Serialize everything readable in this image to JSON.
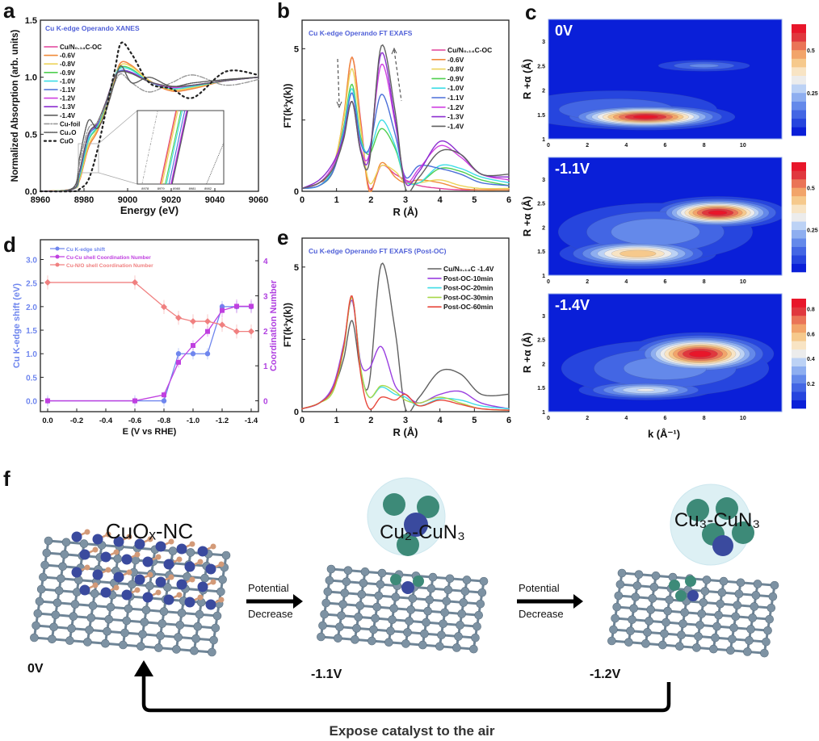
{
  "panel_letters": {
    "a": "a",
    "b": "b",
    "c": "c",
    "d": "d",
    "e": "e",
    "f": "f"
  },
  "chart_data": [
    {
      "id": "a",
      "type": "line",
      "title": "Cu K-edge  Operando XANES",
      "xlabel": "Energy (eV)",
      "ylabel": "Normalized Absorption (arb. units)",
      "xlim": [
        8960,
        9060
      ],
      "ylim": [
        0,
        1.5
      ],
      "xticks": [
        "8960",
        "8980",
        "9000",
        "9020",
        "9040",
        "9060"
      ],
      "yticks": [
        "0.0",
        "0.5",
        "1.0",
        "1.5"
      ],
      "legend_position": "left",
      "x": [
        8960,
        8975,
        8978,
        8982,
        8986,
        8990,
        8994,
        8997,
        9002,
        9010,
        9020,
        9030,
        9045,
        9060
      ],
      "series": [
        {
          "name": "Cu/N₀.₁₄C-OC",
          "color": "#e0409a",
          "style": "solid",
          "values": [
            0,
            0.02,
            0.1,
            0.38,
            0.52,
            0.72,
            0.98,
            1.13,
            1.1,
            0.97,
            0.88,
            0.9,
            0.97,
            1.0
          ]
        },
        {
          "name": "-0.6V",
          "color": "#f08a3a",
          "style": "solid",
          "values": [
            0,
            0.02,
            0.1,
            0.38,
            0.52,
            0.72,
            0.98,
            1.13,
            1.1,
            0.97,
            0.88,
            0.9,
            0.97,
            1.0
          ]
        },
        {
          "name": "-0.8V",
          "color": "#ecd35a",
          "style": "solid",
          "values": [
            0,
            0.02,
            0.11,
            0.4,
            0.54,
            0.73,
            0.99,
            1.11,
            1.09,
            0.97,
            0.89,
            0.91,
            0.97,
            1.0
          ]
        },
        {
          "name": "-0.9V",
          "color": "#4fcf4f",
          "style": "solid",
          "values": [
            0,
            0.02,
            0.13,
            0.44,
            0.56,
            0.75,
            1.0,
            1.09,
            1.07,
            0.96,
            0.9,
            0.92,
            0.97,
            1.0
          ]
        },
        {
          "name": "-1.0V",
          "color": "#3fdde6",
          "style": "solid",
          "values": [
            0,
            0.02,
            0.14,
            0.45,
            0.57,
            0.76,
            1.0,
            1.08,
            1.06,
            0.96,
            0.9,
            0.92,
            0.97,
            1.0
          ]
        },
        {
          "name": "-1.1V",
          "color": "#4a6fd8",
          "style": "solid",
          "values": [
            0,
            0.02,
            0.16,
            0.48,
            0.58,
            0.77,
            1.0,
            1.06,
            1.04,
            0.96,
            0.91,
            0.93,
            0.97,
            1.0
          ]
        },
        {
          "name": "-1.2V",
          "color": "#d040e0",
          "style": "solid",
          "values": [
            0,
            0.02,
            0.18,
            0.5,
            0.59,
            0.78,
            1.0,
            1.05,
            1.04,
            0.96,
            0.91,
            0.93,
            0.97,
            1.0
          ]
        },
        {
          "name": "-1.3V",
          "color": "#8c2fd0",
          "style": "solid",
          "values": [
            0,
            0.02,
            0.18,
            0.5,
            0.59,
            0.78,
            1.0,
            1.05,
            1.04,
            0.96,
            0.92,
            0.93,
            0.97,
            1.0
          ]
        },
        {
          "name": "-1.4V",
          "color": "#606060",
          "style": "solid",
          "values": [
            0,
            0.02,
            0.18,
            0.5,
            0.6,
            0.78,
            1.0,
            1.05,
            1.03,
            0.96,
            0.92,
            0.93,
            0.97,
            1.0
          ]
        },
        {
          "name": "Cu-foil",
          "color": "#999999",
          "style": "dashdot",
          "values": [
            0,
            0.03,
            0.25,
            0.55,
            0.6,
            0.75,
            0.95,
            1.03,
            0.95,
            0.87,
            0.95,
            1.02,
            0.93,
            0.98
          ]
        },
        {
          "name": "Cu₂O",
          "color": "#555555",
          "style": "dotted",
          "values": [
            0,
            0.03,
            0.3,
            0.62,
            0.55,
            0.7,
            0.95,
            1.1,
            0.95,
            1.0,
            0.92,
            0.95,
            0.98,
            1.0
          ]
        },
        {
          "name": "CuO",
          "color": "#222222",
          "style": "dots",
          "values": [
            0,
            0.0,
            0.02,
            0.1,
            0.35,
            0.7,
            1.05,
            1.3,
            1.2,
            0.95,
            0.9,
            0.82,
            1.05,
            1.02
          ]
        }
      ],
      "inset": {
        "xticks": [
          "8978",
          "8979",
          "8980",
          "8981",
          "8982"
        ]
      }
    },
    {
      "id": "b",
      "type": "line",
      "title": "Cu K-edge  Operando FT EXAFS",
      "xlabel": "R (Å)",
      "ylabel": "FT(k³χ(k))",
      "xlim": [
        0,
        6
      ],
      "ylim": [
        0,
        6
      ],
      "xticks": [
        "0",
        "1",
        "2",
        "3",
        "4",
        "5",
        "6"
      ],
      "yticks": [
        "0",
        "5"
      ],
      "legend_position": "top-right",
      "x": [
        0,
        0.5,
        0.9,
        1.2,
        1.45,
        1.7,
        1.95,
        2.3,
        2.7,
        3.0,
        3.4,
        4.0,
        4.6,
        5.2,
        6.0
      ],
      "series": [
        {
          "name": "Cu/N₀.₁₄C-OC",
          "color": "#e0409a",
          "values": [
            0.1,
            0.3,
            0.7,
            2.5,
            4.7,
            2.5,
            0.1,
            0.9,
            0.6,
            0.4,
            0.2,
            0.1,
            0.05,
            0.05,
            0.05
          ]
        },
        {
          "name": "-0.6V",
          "color": "#f08a3a",
          "values": [
            0.1,
            0.3,
            0.8,
            2.6,
            4.7,
            2.4,
            0.0,
            1.0,
            0.5,
            0.3,
            0.4,
            0.3,
            0.1,
            0.05,
            0.05
          ]
        },
        {
          "name": "-0.8V",
          "color": "#ecd35a",
          "values": [
            0.1,
            0.3,
            0.9,
            2.5,
            4.3,
            2.2,
            0.3,
            0.9,
            0.7,
            0.3,
            0.3,
            0.4,
            0.2,
            0.1,
            0.1
          ]
        },
        {
          "name": "-0.9V",
          "color": "#4fcf4f",
          "values": [
            0.1,
            0.2,
            0.7,
            2.2,
            3.75,
            1.9,
            1.3,
            2.2,
            1.5,
            0.4,
            0.3,
            0.8,
            0.7,
            0.4,
            0.2
          ]
        },
        {
          "name": "-1.0V",
          "color": "#3fdde6",
          "values": [
            0.1,
            0.2,
            0.8,
            2.1,
            3.6,
            1.8,
            1.4,
            2.5,
            1.6,
            0.4,
            0.3,
            0.9,
            0.8,
            0.5,
            0.3
          ]
        },
        {
          "name": "-1.1V",
          "color": "#4a6fd8",
          "values": [
            0.1,
            0.2,
            0.7,
            2.0,
            3.45,
            1.7,
            1.5,
            3.4,
            2.0,
            0.5,
            0.9,
            0.8,
            0.6,
            0.3,
            0.2
          ]
        },
        {
          "name": "-1.2V",
          "color": "#d040e0",
          "values": [
            0.1,
            0.3,
            0.9,
            1.9,
            3.15,
            1.5,
            1.3,
            4.45,
            2.4,
            0.4,
            0.8,
            1.6,
            1.2,
            0.6,
            0.4
          ]
        },
        {
          "name": "-1.3V",
          "color": "#8c2fd0",
          "values": [
            0.1,
            0.4,
            1.0,
            1.9,
            3.15,
            1.4,
            1.2,
            4.85,
            2.5,
            0.3,
            0.7,
            1.75,
            1.3,
            0.6,
            0.5
          ]
        },
        {
          "name": "-1.4V",
          "color": "#606060",
          "values": [
            0.1,
            0.3,
            0.8,
            1.8,
            3.15,
            1.4,
            1.0,
            5.1,
            2.8,
            0.1,
            0.5,
            1.4,
            1.3,
            0.6,
            0.6
          ]
        }
      ]
    },
    {
      "id": "c",
      "type": "heatmap",
      "xlabel": "k (Å⁻¹)",
      "ylabel": "R +α (Å)",
      "xlim": [
        0,
        12
      ],
      "ylim": [
        1,
        3.45
      ],
      "xticks": [
        "0",
        "2",
        "4",
        "6",
        "8",
        "10"
      ],
      "yticks": [
        "1",
        "1.5",
        "2",
        "2.5",
        "3"
      ],
      "maps": [
        {
          "label": "0V",
          "cmax": 0.65,
          "cbar_ticks": [
            "0.25",
            "0.5"
          ],
          "cbar_values": [
            0.25,
            0.5
          ],
          "features": [
            {
              "k": 5.0,
              "R": 1.45,
              "k_width": 3.4,
              "R_width": 0.2,
              "intensity": 0.63
            },
            {
              "k": 8.0,
              "R": 2.5,
              "k_width": 2.5,
              "R_width": 0.12,
              "intensity": 0.17
            },
            {
              "k": 3.5,
              "R": 1.6,
              "k_width": 6,
              "R_width": 0.45,
              "intensity": 0.14
            }
          ]
        },
        {
          "label": "-1.1V",
          "cmax": 0.65,
          "cbar_ticks": [
            "0.25",
            "0.5"
          ],
          "cbar_values": [
            0.25,
            0.5
          ],
          "features": [
            {
              "k": 8.7,
              "R": 2.3,
              "k_width": 2.6,
              "R_width": 0.25,
              "intensity": 0.63
            },
            {
              "k": 4.6,
              "R": 1.45,
              "k_width": 3.2,
              "R_width": 0.25,
              "intensity": 0.45
            },
            {
              "k": 5.5,
              "R": 1.9,
              "k_width": 5,
              "R_width": 0.6,
              "intensity": 0.2
            }
          ]
        },
        {
          "label": "-1.4V",
          "cmax": 0.88,
          "cbar_ticks": [
            "0.2",
            "0.4",
            "0.6",
            "0.8"
          ],
          "cbar_values": [
            0.2,
            0.4,
            0.6,
            0.8
          ],
          "features": [
            {
              "k": 7.8,
              "R": 2.2,
              "k_width": 2.8,
              "R_width": 0.33,
              "intensity": 0.86
            },
            {
              "k": 5.0,
              "R": 1.45,
              "k_width": 3.0,
              "R_width": 0.18,
              "intensity": 0.42
            },
            {
              "k": 6,
              "R": 1.9,
              "k_width": 5.5,
              "R_width": 0.6,
              "intensity": 0.25
            }
          ]
        }
      ]
    },
    {
      "id": "d",
      "type": "line",
      "xlabel": "E (V vs RHE)",
      "ylabel": "Cu K-edge shift (eV)",
      "ylabel_right": "Coordination Number",
      "xlim": [
        0.05,
        -1.45
      ],
      "ylim": [
        -0.23,
        3.42
      ],
      "ylim_right": [
        -0.31,
        4.6
      ],
      "xticks": [
        "0.0",
        "-0.2",
        "-0.4",
        "-0.6",
        "-0.8",
        "-1.0",
        "-1.2",
        "-1.4"
      ],
      "yticks": [
        "0.0",
        "0.5",
        "1.0",
        "1.5",
        "2.0",
        "2.5",
        "3.0"
      ],
      "yticks_right": [
        "0",
        "1",
        "2",
        "3",
        "4"
      ],
      "legend_position": "top-left",
      "x": [
        0,
        -0.6,
        -0.8,
        -0.9,
        -1.0,
        -1.1,
        -1.2,
        -1.3,
        -1.4
      ],
      "series": [
        {
          "name": "Cu K-edge shift",
          "axis": "left",
          "color": "#6f86ee",
          "marker": "circle",
          "values": [
            0,
            0,
            0,
            1.0,
            1.0,
            1.0,
            2.0,
            2.0,
            2.0
          ],
          "error": [
            0.12,
            0.12,
            0.12,
            0.12,
            0.12,
            0.12,
            0.12,
            0.12,
            0.12
          ]
        },
        {
          "name": "Cu-Cu  shell Coordination Number",
          "axis": "right",
          "color": "#c040e0",
          "marker": "square",
          "values": [
            0,
            0,
            0.17,
            1.1,
            1.58,
            1.98,
            2.58,
            2.7,
            2.7
          ],
          "error": [
            0.1,
            0.1,
            0.1,
            0.15,
            0.15,
            0.15,
            0.2,
            0.2,
            0.2
          ]
        },
        {
          "name": "Cu-N/O shell Coordination Number",
          "axis": "right",
          "color": "#f08080",
          "marker": "diamond",
          "values": [
            3.38,
            3.38,
            2.68,
            2.37,
            2.27,
            2.27,
            2.17,
            1.98,
            1.98
          ],
          "error": [
            0.2,
            0.2,
            0.2,
            0.2,
            0.2,
            0.2,
            0.2,
            0.2,
            0.2
          ]
        }
      ]
    },
    {
      "id": "e",
      "type": "line",
      "title": "Cu K-edge  Operando FT EXAFS (Post-OC)",
      "xlabel": "R (Å)",
      "ylabel": "FT(k³χ(k))",
      "xlim": [
        0,
        6
      ],
      "ylim": [
        0,
        6
      ],
      "xticks": [
        "0",
        "1",
        "2",
        "3",
        "4",
        "5",
        "6"
      ],
      "yticks": [
        "0",
        "5"
      ],
      "legend_position": "top-right",
      "x": [
        0,
        0.5,
        0.9,
        1.2,
        1.45,
        1.7,
        1.95,
        2.3,
        2.7,
        3.0,
        3.4,
        4.0,
        4.6,
        5.2,
        6.0
      ],
      "series": [
        {
          "name": "Cu/N₀.₁₄C -1.4V",
          "color": "#606060",
          "values": [
            0.1,
            0.3,
            0.8,
            1.8,
            3.15,
            1.4,
            1.0,
            5.1,
            2.8,
            0.1,
            0.5,
            1.4,
            1.3,
            0.6,
            0.6
          ]
        },
        {
          "name": "Post-OC-10min",
          "color": "#9a3fe0",
          "values": [
            0.1,
            0.3,
            0.9,
            2.3,
            3.85,
            1.7,
            1.5,
            2.25,
            0.9,
            0.6,
            0.3,
            0.6,
            0.7,
            0.3,
            0.1
          ]
        },
        {
          "name": "Post-OC-20min",
          "color": "#3fdde6",
          "values": [
            0.1,
            0.3,
            0.8,
            2.2,
            3.95,
            1.5,
            0.5,
            0.85,
            0.6,
            0.5,
            0.2,
            0.45,
            0.4,
            0.2,
            0.1
          ]
        },
        {
          "name": "Post-OC-30min",
          "color": "#a8d84a",
          "values": [
            0.1,
            0.3,
            0.7,
            2.1,
            3.95,
            1.5,
            0.5,
            0.9,
            0.7,
            0.4,
            0.3,
            0.5,
            0.3,
            0.1,
            0.05
          ]
        },
        {
          "name": "Post-OC-60min",
          "color": "#e8483c",
          "values": [
            0.1,
            0.3,
            0.8,
            2.2,
            4.0,
            1.3,
            0.1,
            0.5,
            0.4,
            0.6,
            0.2,
            0.4,
            0.25,
            0.1,
            0.05
          ]
        }
      ]
    }
  ],
  "scheme": {
    "structures": [
      {
        "name": "CuOₓ-NC",
        "potential": "0V"
      },
      {
        "name": "Cu₂-CuN₃",
        "potential": "-1.1V"
      },
      {
        "name": "Cu₃-CuN₃",
        "potential": "-1.2V"
      }
    ],
    "arrows": [
      {
        "line1": "Potential",
        "line2": "Decrease"
      },
      {
        "line1": "Potential",
        "line2": "Decrease"
      }
    ],
    "return_label": "Expose catalyst to the air",
    "colors": {
      "carbon": "#7d92a3",
      "copper": "#3a4a9e",
      "oxygen": "#d39a78",
      "cluster": "#3d8a78",
      "bubble": "#d8eef3"
    }
  },
  "title_color": "#5060d8"
}
